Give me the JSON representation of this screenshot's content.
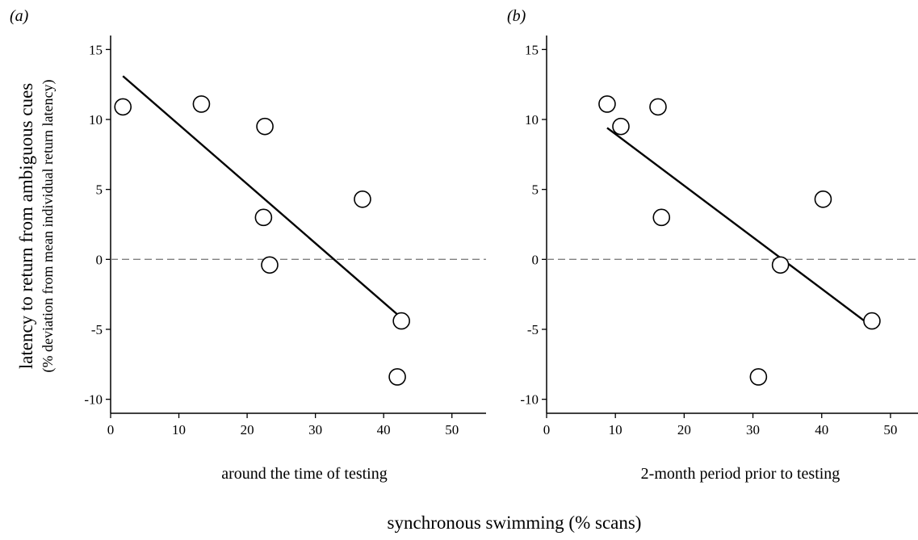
{
  "figure": {
    "shared_xlabel": "synchronous swimming (% scans)",
    "ylabel_main": "latency to return from ambiguous cues",
    "ylabel_sub": "(% deviation from mean individual return latency)"
  },
  "chart_data": [
    {
      "type": "scatter",
      "panel": "(a)",
      "xlabel": "around the time of testing",
      "xlim": [
        0,
        55
      ],
      "ylim": [
        -11,
        16
      ],
      "xticks": [
        0,
        10,
        20,
        30,
        40,
        50
      ],
      "yticks": [
        15,
        10,
        5,
        0,
        -5,
        -10
      ],
      "points": [
        {
          "x": 1.8,
          "y": 10.9
        },
        {
          "x": 13.3,
          "y": 11.1
        },
        {
          "x": 22.6,
          "y": 9.5
        },
        {
          "x": 22.4,
          "y": 3.0
        },
        {
          "x": 23.3,
          "y": -0.4
        },
        {
          "x": 36.9,
          "y": 4.3
        },
        {
          "x": 42.6,
          "y": -4.4
        },
        {
          "x": 42.0,
          "y": -8.4
        }
      ],
      "fit_line": {
        "x": [
          1.8,
          42.4
        ],
        "y": [
          13.1,
          -4.1
        ]
      },
      "reference_line": {
        "y": 0,
        "style": "dashed"
      }
    },
    {
      "type": "scatter",
      "panel": "(b)",
      "xlabel": "2-month period prior to testing",
      "xlim": [
        0,
        54
      ],
      "ylim": [
        -11,
        16
      ],
      "xticks": [
        0,
        10,
        20,
        30,
        40,
        50
      ],
      "yticks": [
        15,
        10,
        5,
        0,
        -5,
        -10
      ],
      "points": [
        {
          "x": 8.8,
          "y": 11.1
        },
        {
          "x": 10.8,
          "y": 9.5
        },
        {
          "x": 16.2,
          "y": 10.9
        },
        {
          "x": 16.7,
          "y": 3.0
        },
        {
          "x": 34.0,
          "y": -0.4
        },
        {
          "x": 40.2,
          "y": 4.3
        },
        {
          "x": 47.3,
          "y": -4.4
        },
        {
          "x": 30.8,
          "y": -8.4
        }
      ],
      "fit_line": {
        "x": [
          8.8,
          47.3
        ],
        "y": [
          9.4,
          -4.8
        ]
      },
      "reference_line": {
        "y": 0,
        "style": "dashed"
      }
    }
  ]
}
